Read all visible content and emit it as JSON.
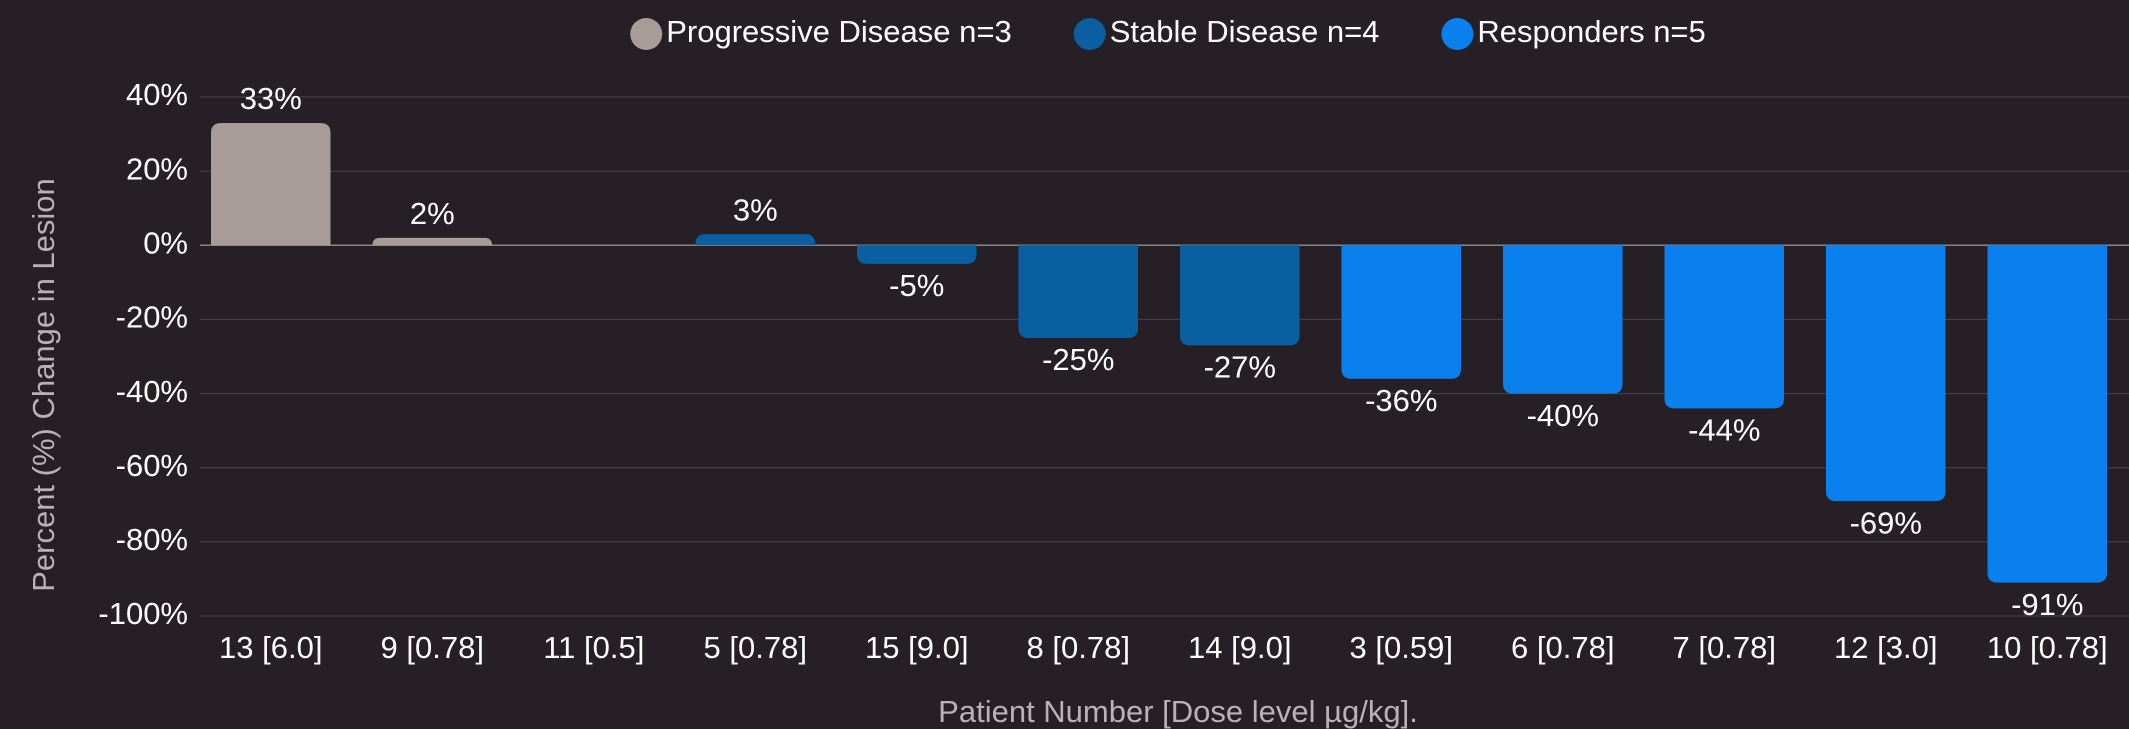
{
  "chart_data": {
    "type": "bar",
    "x_label": "Patient Number [Dose level µg/kg].",
    "y_label": "Percent (%) Change in Lesion",
    "categories": [
      "13 [6.0]",
      "9 [0.78]",
      "11 [0.5]",
      "5 [0.78]",
      "15 [9.0]",
      "8 [0.78]",
      "14 [9.0]",
      "3 [0.59]",
      "6 [0.78]",
      "7 [0.78]",
      "12 [3.0]",
      "10 [0.78]"
    ],
    "series": [
      {
        "name": "Progressive Disease n=3",
        "color": "#a89c98",
        "values": [
          33,
          2,
          null,
          null,
          null,
          null,
          null,
          null,
          null,
          null,
          null,
          null
        ],
        "value_labels": [
          "33%",
          "2%",
          null,
          null,
          null,
          null,
          null,
          null,
          null,
          null,
          null,
          null
        ]
      },
      {
        "name": "Stable Disease n=4",
        "color": "#0a5fa0",
        "values": [
          null,
          null,
          null,
          3,
          -5,
          -25,
          -27,
          null,
          null,
          null,
          null,
          null
        ],
        "value_labels": [
          null,
          null,
          null,
          "3%",
          "-5%",
          "-25%",
          "-27%",
          null,
          null,
          null,
          null,
          null
        ]
      },
      {
        "name": "Responders n=5",
        "color": "#0a80ee",
        "values": [
          null,
          null,
          null,
          null,
          null,
          null,
          null,
          -36,
          -40,
          -44,
          -69,
          -91
        ],
        "value_labels": [
          null,
          null,
          null,
          null,
          null,
          null,
          null,
          "-36%",
          "-40%",
          "-44%",
          "-69%",
          "-91%"
        ]
      }
    ],
    "ylim": [
      -100,
      40
    ],
    "yticks": [
      {
        "value": 40,
        "label": "40%"
      },
      {
        "value": 20,
        "label": "20%"
      },
      {
        "value": 0,
        "label": "0%"
      },
      {
        "value": -20,
        "label": "-20%"
      },
      {
        "value": -40,
        "label": "-40%"
      },
      {
        "value": -60,
        "label": "-60%"
      },
      {
        "value": -80,
        "label": "-80%"
      },
      {
        "value": -100,
        "label": "-100%"
      }
    ],
    "grid": true,
    "legend": "top"
  }
}
